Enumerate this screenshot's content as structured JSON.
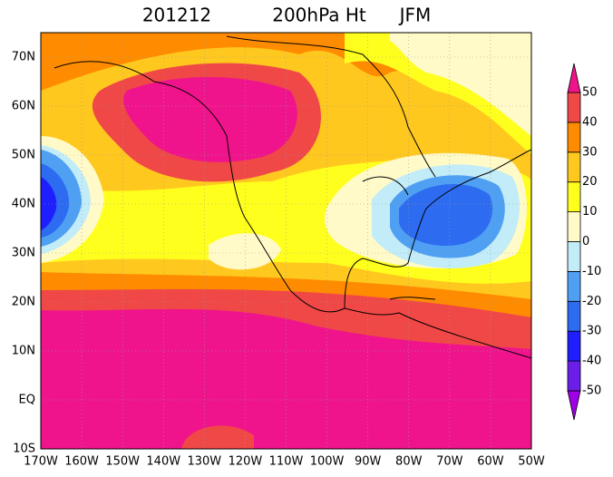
{
  "title": {
    "date": "201212",
    "field": "200hPa Ht",
    "season": "JFM"
  },
  "map": {
    "x_labels": [
      "170W",
      "160W",
      "150W",
      "140W",
      "130W",
      "120W",
      "110W",
      "100W",
      "90W",
      "80W",
      "70W",
      "60W",
      "50W"
    ],
    "y_labels": [
      "10S",
      "EQ",
      "10N",
      "20N",
      "30N",
      "40N",
      "50N",
      "60N",
      "70N"
    ]
  },
  "colorbar": {
    "ticks": [
      -50,
      -40,
      -30,
      -20,
      -10,
      0,
      10,
      20,
      30,
      40,
      50
    ],
    "colors": [
      "#a000e6",
      "#6a1ee8",
      "#1e1eff",
      "#2d6cf0",
      "#4fa0f2",
      "#c2ecf8",
      "#fffac8",
      "#ffff1e",
      "#ffc81e",
      "#ff8c00",
      "#f04846",
      "#f0148c"
    ]
  }
}
